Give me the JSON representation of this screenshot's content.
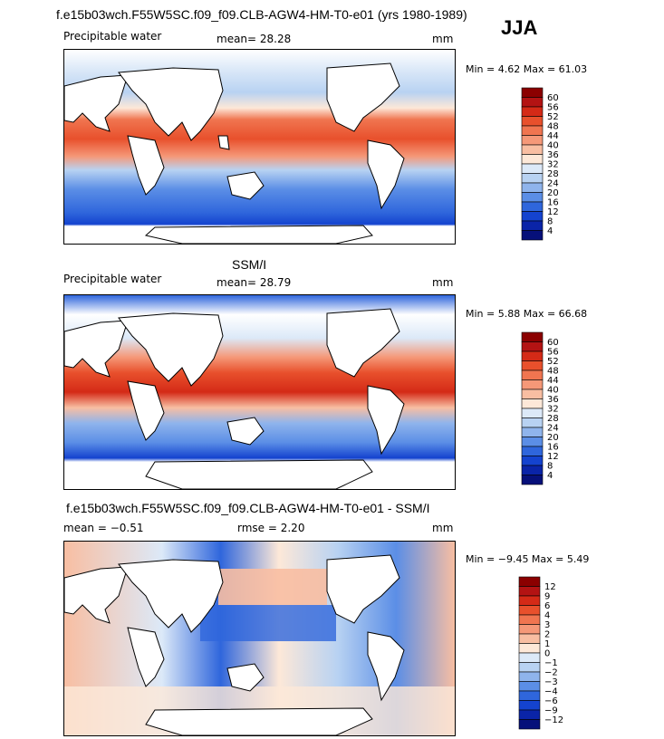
{
  "figure": {
    "title": "f.e15b03wch.F55W5SC.f09_f09.CLB-AGW4-HM-T0-e01 (yrs 1980-1989)",
    "season": "JJA"
  },
  "panels": [
    {
      "id": "model",
      "heading": "",
      "variable": "Precipitable water",
      "mean_text": "mean=  28.28",
      "extra_text": "",
      "units": "mm",
      "minmax_text": "Min =   4.62 Max =  61.03",
      "colorbar": {
        "labels": [
          "60",
          "56",
          "52",
          "48",
          "44",
          "40",
          "36",
          "32",
          "28",
          "24",
          "20",
          "16",
          "12",
          "8",
          "4"
        ],
        "colors": [
          "#8b0000",
          "#b31313",
          "#d42a17",
          "#e8502c",
          "#f07550",
          "#f59878",
          "#f8bea2",
          "#fde8d8",
          "#dce9f8",
          "#b8d2f2",
          "#8fb4ec",
          "#5b8ee6",
          "#2f66dc",
          "#1443cf",
          "#0a24a8",
          "#06107a"
        ]
      }
    },
    {
      "id": "obs",
      "heading": "SSM/I",
      "variable": "Precipitable water",
      "mean_text": "mean=  28.79",
      "extra_text": "",
      "units": "mm",
      "minmax_text": "Min =   5.88 Max =  66.68",
      "colorbar": {
        "labels": [
          "60",
          "56",
          "52",
          "48",
          "44",
          "40",
          "36",
          "32",
          "28",
          "24",
          "20",
          "16",
          "12",
          "8",
          "4"
        ],
        "colors": [
          "#8b0000",
          "#b31313",
          "#d42a17",
          "#e8502c",
          "#f07550",
          "#f59878",
          "#f8bea2",
          "#fde8d8",
          "#dce9f8",
          "#b8d2f2",
          "#8fb4ec",
          "#5b8ee6",
          "#2f66dc",
          "#1443cf",
          "#0a24a8",
          "#06107a"
        ]
      }
    },
    {
      "id": "diff",
      "heading": "f.e15b03wch.F55W5SC.f09_f09.CLB-AGW4-HM-T0-e01 - SSM/I",
      "variable": "",
      "mean_text": "mean =  −0.51",
      "extra_text": "rmse =   2.20",
      "units": "mm",
      "minmax_text": "Min =  −9.45 Max =   5.49",
      "colorbar": {
        "labels": [
          "12",
          "9",
          "6",
          "4",
          "3",
          "2",
          "1",
          "0",
          "−1",
          "−2",
          "−3",
          "−4",
          "−6",
          "−9",
          "−12"
        ],
        "colors": [
          "#8b0000",
          "#b31313",
          "#d42a17",
          "#e8502c",
          "#f07550",
          "#f59878",
          "#f8bea2",
          "#fde8d8",
          "#dce9f8",
          "#b8d2f2",
          "#8fb4ec",
          "#5b8ee6",
          "#2f66dc",
          "#1443cf",
          "#0a24a8",
          "#06107a"
        ]
      }
    }
  ]
}
